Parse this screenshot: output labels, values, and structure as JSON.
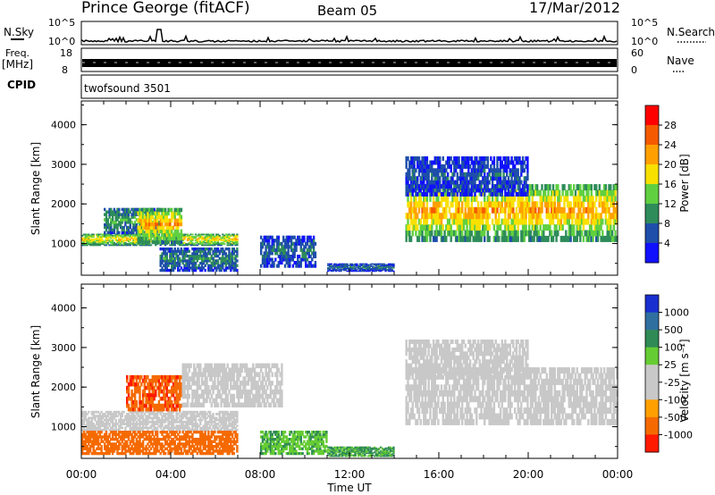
{
  "header": {
    "station": "Prince George (fitACF)",
    "beam": "Beam 05",
    "date": "17/Mar/2012"
  },
  "strip_panels": {
    "nsky": {
      "label": "N.Sky",
      "ticks": [
        "10^5",
        "10^0"
      ]
    },
    "nsearch": {
      "label": "N.Search",
      "ticks": [
        "10^5",
        "10^0"
      ]
    },
    "freq": {
      "label_line1": "Freq.",
      "label_line2": "[MHz]",
      "ticks": [
        "18",
        "8"
      ]
    },
    "nave": {
      "label": "Nave",
      "ticks": [
        "60",
        "0"
      ]
    },
    "cpid": {
      "label": "CPID",
      "value": "twofsound 3501"
    }
  },
  "chart_data": [
    {
      "type": "heatmap",
      "title": "Power",
      "ylabel": "Slant Range [km]",
      "xlabel": "",
      "xlim": [
        0,
        24
      ],
      "ylim": [
        200,
        4600
      ],
      "yticks": [
        "1000",
        "2000",
        "3000",
        "4000"
      ],
      "colorbar": {
        "label": "Power [dB]",
        "ticks": [
          "28",
          "24",
          "20",
          "16",
          "12",
          "8",
          "4"
        ],
        "colors": [
          "#ff0000",
          "#f55a00",
          "#ffa000",
          "#f8e000",
          "#60d040",
          "#2e8c5a",
          "#1e4eaa",
          "#1010ff"
        ]
      },
      "bands": [
        {
          "t": [
            0.0,
            7.0
          ],
          "range": [
            950,
            1250
          ],
          "level": 20
        },
        {
          "t": [
            1.0,
            3.5
          ],
          "range": [
            1250,
            1900
          ],
          "level": 12
        },
        {
          "t": [
            2.5,
            4.5
          ],
          "range": [
            1000,
            1900
          ],
          "level": 22
        },
        {
          "t": [
            3.5,
            7.0
          ],
          "range": [
            300,
            900
          ],
          "level": 10
        },
        {
          "t": [
            8.0,
            10.5
          ],
          "range": [
            400,
            1200
          ],
          "level": 8
        },
        {
          "t": [
            11.0,
            14.0
          ],
          "range": [
            300,
            500
          ],
          "level": 8
        },
        {
          "t": [
            14.5,
            24.0
          ],
          "range": [
            1050,
            2500
          ],
          "level": 22
        },
        {
          "t": [
            14.5,
            20.0
          ],
          "range": [
            2200,
            3200
          ],
          "level": 6
        }
      ]
    },
    {
      "type": "heatmap",
      "title": "Velocity",
      "ylabel": "Slant Range [km]",
      "xlabel": "Time UT",
      "xlim": [
        0,
        24
      ],
      "ylim": [
        200,
        4600
      ],
      "yticks": [
        "1000",
        "2000",
        "3000",
        "4000"
      ],
      "xticks": [
        "00:00",
        "04:00",
        "08:00",
        "12:00",
        "16:00",
        "20:00",
        "00:00"
      ],
      "colorbar": {
        "label": "Velocity [m s⁻¹]",
        "ticks": [
          "1000",
          "500",
          "100",
          "25",
          "-25",
          "-100",
          "-500",
          "-1000"
        ],
        "colors": [
          "#1a2fd0",
          "#2f6fa0",
          "#2f8a55",
          "#66cc33",
          "#c8c8c8",
          "#c8c8c8",
          "#ffa000",
          "#f56a00",
          "#ff1a00"
        ]
      },
      "bands": [
        {
          "t": [
            0.0,
            7.0
          ],
          "range": [
            900,
            1400
          ],
          "level": 0
        },
        {
          "t": [
            0.0,
            7.0
          ],
          "range": [
            300,
            900
          ],
          "level": -300
        },
        {
          "t": [
            2.0,
            4.5
          ],
          "range": [
            1400,
            2300
          ],
          "level": -400
        },
        {
          "t": [
            4.5,
            9.0
          ],
          "range": [
            1500,
            2600
          ],
          "level": 0
        },
        {
          "t": [
            8.0,
            11.0
          ],
          "range": [
            300,
            900
          ],
          "level": 80
        },
        {
          "t": [
            11.0,
            14.0
          ],
          "range": [
            250,
            500
          ],
          "level": 120
        },
        {
          "t": [
            14.5,
            24.0
          ],
          "range": [
            1050,
            2500
          ],
          "level": 0
        },
        {
          "t": [
            14.5,
            20.0
          ],
          "range": [
            2200,
            3200
          ],
          "level": 0
        }
      ]
    }
  ]
}
